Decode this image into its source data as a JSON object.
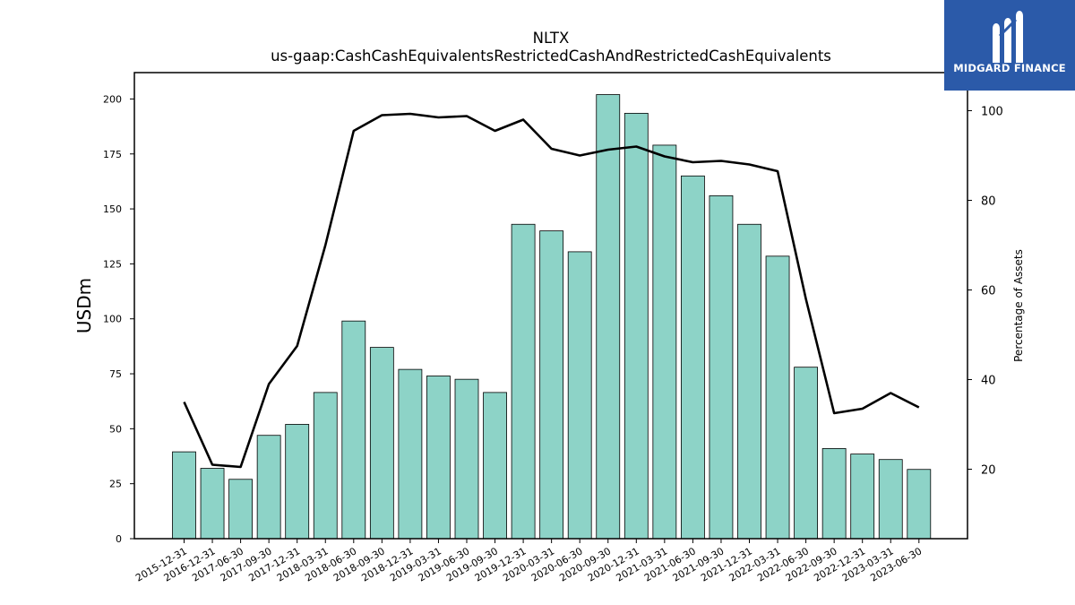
{
  "brand": {
    "name": "MIDGARD FINANCE",
    "logo_icon": "midgard-m-icon",
    "background_color": "#2b5aa9"
  },
  "chart_data": {
    "type": "bar",
    "title": "NLTX",
    "subtitle": "us-gaap:CashCashEquivalentsRestrictedCashAndRestrictedCashEquivalents",
    "ylabel": "USDm",
    "ylabel_right": "Percentage of Assets",
    "categories": [
      "2015-12-31",
      "2016-12-31",
      "2017-06-30",
      "2017-09-30",
      "2017-12-31",
      "2018-03-31",
      "2018-06-30",
      "2018-09-30",
      "2018-12-31",
      "2019-03-31",
      "2019-06-30",
      "2019-09-30",
      "2019-12-31",
      "2020-03-31",
      "2020-06-30",
      "2020-09-30",
      "2020-12-31",
      "2021-03-31",
      "2021-06-30",
      "2021-09-30",
      "2021-12-31",
      "2022-03-31",
      "2022-06-30",
      "2022-09-30",
      "2022-12-31",
      "2023-03-31",
      "2023-06-30"
    ],
    "ylim": [
      0,
      212
    ],
    "yticks": [
      0,
      25,
      50,
      75,
      100,
      125,
      150,
      175,
      200
    ],
    "y2lim": [
      4.5,
      108.5
    ],
    "y2ticks": [
      20,
      40,
      60,
      80,
      100
    ],
    "bar_color": "#8dd3c7",
    "line_color": "#000000",
    "series": [
      {
        "type": "bar",
        "axis": "left",
        "values": [
          39.5,
          32,
          27,
          47,
          52,
          66.5,
          99,
          87,
          77,
          74,
          72.5,
          66.5,
          143,
          140,
          130.5,
          202,
          193.5,
          179,
          165,
          156,
          143,
          128.5,
          78,
          41,
          38.5,
          36,
          31.5
        ]
      },
      {
        "type": "line",
        "axis": "right",
        "values": [
          35,
          21,
          20.5,
          39,
          47.5,
          70,
          95.5,
          99,
          99.3,
          98.5,
          98.8,
          95.5,
          98,
          91.5,
          90,
          91.3,
          92,
          89.8,
          88.5,
          88.8,
          88,
          86.5,
          58,
          32.5,
          33.5,
          37,
          33.8
        ]
      }
    ],
    "grid": false
  }
}
